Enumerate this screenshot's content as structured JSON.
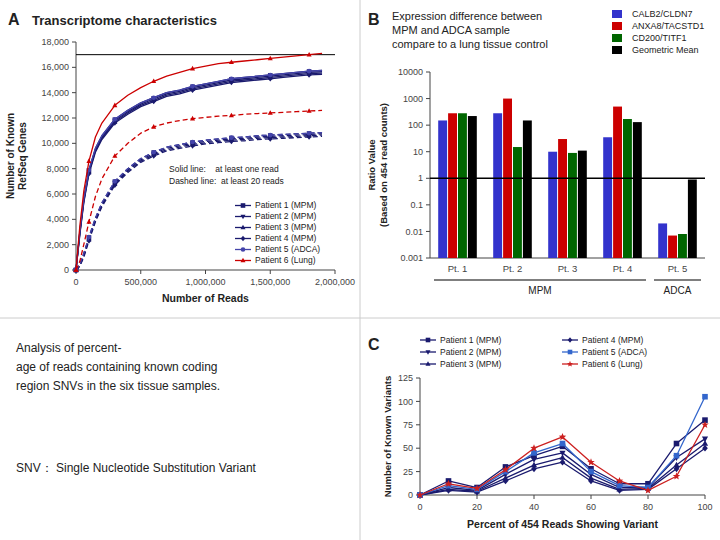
{
  "chart_data": [
    {
      "type": "line",
      "title": "Transcriptome characteristics",
      "xlabel": "Number of Reads",
      "ylabel": "Number of Known\nRefSeq Genes",
      "annotations": [
        "A",
        "Solid line:    at least one read\nDashed line:  at least 20 reads"
      ],
      "x": [
        0,
        30000,
        60000,
        100000,
        150000,
        200000,
        300000,
        400000,
        500000,
        600000,
        700000,
        800000,
        900000,
        1000000,
        1100000,
        1200000,
        1300000,
        1400000,
        1500000,
        1600000,
        1700000,
        1800000,
        1900000
      ],
      "xlim": [
        0,
        2000000
      ],
      "xticks": [
        0,
        {
          "value": 500000,
          "label": "500,000"
        },
        {
          "value": 1000000,
          "label": "1,000,000"
        },
        {
          "value": 1500000,
          "label": "1,500,000"
        },
        {
          "value": 2000000,
          "label": "2,000,000"
        }
      ],
      "ylim": [
        0,
        18000
      ],
      "yticks": [
        0,
        {
          "value": 2000,
          "label": "2,000"
        },
        {
          "value": 4000,
          "label": "4,000"
        },
        {
          "value": 6000,
          "label": "6,000"
        },
        {
          "value": 8000,
          "label": "8,000"
        },
        {
          "value": 10000,
          "label": "10,000"
        },
        {
          "value": 12000,
          "label": "12,000"
        },
        {
          "value": 14000,
          "label": "14,000"
        },
        {
          "value": 16000,
          "label": "16,000"
        },
        {
          "value": 18000,
          "label": "18,000"
        }
      ],
      "reference_line": 17000,
      "grid": false,
      "legend": "lower right",
      "series": [
        {
          "name": "Patient 1 (MPM)",
          "color": "#1a1a6e",
          "marker": "square",
          "line_style": "solid",
          "values": [
            0,
            3000,
            5500,
            7800,
            9500,
            10500,
            11800,
            12500,
            13100,
            13500,
            13900,
            14100,
            14400,
            14600,
            14800,
            15000,
            15100,
            15200,
            15300,
            15400,
            15500,
            15600,
            15650
          ]
        },
        {
          "color": "#1a1a6e",
          "marker": "square",
          "line_style": "dashed",
          "values": [
            0,
            400,
            1200,
            2500,
            4000,
            5200,
            6900,
            7900,
            8700,
            9200,
            9600,
            9800,
            10000,
            10150,
            10250,
            10350,
            10400,
            10500,
            10550,
            10600,
            10650,
            10700,
            10750
          ]
        },
        {
          "name": "Patient 2 (MPM)",
          "color": "#1a1a6e",
          "marker": "triangle-down",
          "line_style": "solid",
          "values": [
            0,
            3100,
            5600,
            7900,
            9600,
            10600,
            11900,
            12600,
            13200,
            13600,
            14000,
            14200,
            14500,
            14700,
            14900,
            15100,
            15200,
            15300,
            15400,
            15500,
            15600,
            15700,
            15750
          ]
        },
        {
          "color": "#1a1a6e",
          "marker": "triangle-down",
          "line_style": "dashed",
          "values": [
            0,
            450,
            1300,
            2600,
            4100,
            5300,
            7000,
            8000,
            8800,
            9300,
            9700,
            9900,
            10100,
            10250,
            10350,
            10450,
            10500,
            10600,
            10650,
            10700,
            10750,
            10800,
            10850
          ]
        },
        {
          "name": "Patient 3 (MPM)",
          "color": "#1a1a6e",
          "marker": "triangle-up",
          "line_style": "solid",
          "values": [
            0,
            2900,
            5400,
            7700,
            9400,
            10400,
            11700,
            12400,
            13000,
            13400,
            13800,
            14000,
            14300,
            14500,
            14700,
            14900,
            15000,
            15100,
            15200,
            15300,
            15400,
            15500,
            15550
          ]
        },
        {
          "color": "#1a1a6e",
          "marker": "triangle-up",
          "line_style": "dashed",
          "values": [
            0,
            350,
            1100,
            2400,
            3900,
            5100,
            6800,
            7800,
            8600,
            9100,
            9500,
            9700,
            9900,
            10050,
            10150,
            10250,
            10300,
            10400,
            10450,
            10500,
            10550,
            10600,
            10650
          ]
        },
        {
          "name": "Patient 4 (MPM)",
          "color": "#1a1a6e",
          "marker": "diamond",
          "line_style": "solid",
          "values": [
            0,
            2800,
            5300,
            7600,
            9300,
            10300,
            11600,
            12300,
            12900,
            13300,
            13700,
            13900,
            14200,
            14400,
            14600,
            14800,
            14900,
            15000,
            15100,
            15200,
            15300,
            15400,
            15450
          ]
        },
        {
          "color": "#1a1a6e",
          "marker": "diamond",
          "line_style": "dashed",
          "values": [
            0,
            300,
            1000,
            2300,
            3800,
            5000,
            6700,
            7700,
            8500,
            9000,
            9400,
            9600,
            9800,
            9950,
            10050,
            10150,
            10200,
            10300,
            10350,
            10400,
            10450,
            10500,
            10550
          ]
        },
        {
          "name": "Patient 5 (ADCA)",
          "color": "#4444aa",
          "marker": "circle",
          "line_style": "solid",
          "values": [
            0,
            3100,
            5600,
            7900,
            9600,
            10600,
            11900,
            12600,
            13200,
            13600,
            14000,
            14200,
            14500,
            14700,
            14900,
            15100,
            15200,
            15300,
            15400,
            15500,
            15600,
            15700,
            15750
          ]
        },
        {
          "color": "#4444aa",
          "marker": "circle",
          "line_style": "dashed",
          "values": [
            0,
            450,
            1300,
            2600,
            4100,
            5300,
            7000,
            8000,
            8800,
            9300,
            9700,
            9900,
            10100,
            10250,
            10350,
            10450,
            10500,
            10600,
            10650,
            10700,
            10750,
            10800,
            10850
          ]
        },
        {
          "name": "Patient 6 (Lung)",
          "color": "#cc0000",
          "marker": "triangle-up",
          "line_style": "solid",
          "values": [
            0,
            3500,
            6200,
            8600,
            10500,
            11600,
            13000,
            13800,
            14400,
            14900,
            15300,
            15600,
            15900,
            16100,
            16300,
            16400,
            16500,
            16600,
            16700,
            16800,
            16900,
            17000,
            17100
          ]
        },
        {
          "color": "#cc0000",
          "marker": "triangle-up",
          "line_style": "dashed",
          "values": [
            0,
            700,
            2000,
            3800,
            5800,
            7200,
            9000,
            10000,
            10800,
            11300,
            11600,
            11800,
            11950,
            12050,
            12150,
            12200,
            12300,
            12350,
            12400,
            12450,
            12500,
            12550,
            12600
          ]
        }
      ]
    },
    {
      "type": "bar",
      "title": "Expression difference between\nMPM and ADCA sample\ncompare to a lung tissue control",
      "ylabel": "Ratio Value\n(Based on 454 read counts)",
      "annotations": [
        "B"
      ],
      "categories": [
        "Pt. 1",
        "Pt. 2",
        "Pt. 3",
        "Pt. 4",
        "Pt. 5"
      ],
      "groups": [
        {
          "label": "MPM",
          "categories": [
            "Pt. 1",
            "Pt. 2",
            "Pt. 3",
            "Pt. 4"
          ]
        },
        {
          "label": "ADCA",
          "categories": [
            "Pt. 5"
          ]
        }
      ],
      "log": "y",
      "ylim": [
        0.001,
        10000
      ],
      "yticks": [
        0.001,
        0.01,
        0.1,
        1,
        10,
        100,
        1000,
        10000
      ],
      "reference_line": 1,
      "grid": false,
      "legend": "upper right",
      "series": [
        {
          "name": "CALB2/CLDN7",
          "color": "#3333cc",
          "values": [
            150,
            280,
            10,
            35,
            0.02
          ]
        },
        {
          "name": "ANXA8/TACSTD1",
          "color": "#cc0000",
          "values": [
            280,
            1000,
            30,
            500,
            0.007
          ]
        },
        {
          "name": "CD200/TITF1",
          "color": "#006600",
          "values": [
            280,
            15,
            9,
            170,
            0.008
          ]
        },
        {
          "name": "Geometric Mean",
          "color": "#000000",
          "values": [
            220,
            150,
            11,
            130,
            0.9
          ]
        }
      ]
    },
    {
      "type": "line",
      "xlabel": "Percent of 454 Reads Showing Variant",
      "ylabel": "Number of Known Variants",
      "annotations": [
        "C",
        "Analysis of percent-\nage of reads containing known coding\nregion SNVs in the six tissue samples.",
        "SNV：  Single Nucleotide Substitution Variant"
      ],
      "x": [
        0,
        10,
        20,
        30,
        40,
        50,
        60,
        70,
        80,
        90,
        100
      ],
      "xlim": [
        0,
        100
      ],
      "xticks": [
        0,
        20,
        40,
        60,
        80,
        100
      ],
      "ylim": [
        0,
        125
      ],
      "yticks": [
        0,
        25,
        50,
        75,
        100,
        125
      ],
      "grid": false,
      "legend": "upper left",
      "series": [
        {
          "name": "Patient 1 (MPM)",
          "color": "#1a1a6e",
          "marker": "square",
          "line_style": "solid",
          "values": [
            0,
            15,
            8,
            30,
            42,
            52,
            28,
            12,
            12,
            55,
            80
          ]
        },
        {
          "name": "Patient 2 (MPM)",
          "color": "#1a1a6e",
          "marker": "triangle-down",
          "line_style": "solid",
          "values": [
            0,
            8,
            5,
            22,
            38,
            45,
            22,
            8,
            8,
            40,
            60
          ]
        },
        {
          "name": "Patient 3 (MPM)",
          "color": "#1a1a6e",
          "marker": "triangle-up",
          "line_style": "solid",
          "values": [
            0,
            6,
            4,
            18,
            32,
            40,
            18,
            6,
            7,
            32,
            55
          ]
        },
        {
          "name": "Patient 4 (MPM)",
          "color": "#1a1a6e",
          "marker": "diamond",
          "line_style": "solid",
          "values": [
            0,
            5,
            3,
            15,
            28,
            35,
            15,
            5,
            6,
            28,
            50
          ]
        },
        {
          "name": "Patient 5 (ADCA)",
          "color": "#3366cc",
          "marker": "square",
          "line_style": "solid",
          "values": [
            0,
            10,
            6,
            25,
            45,
            55,
            25,
            10,
            8,
            42,
            105
          ]
        },
        {
          "name": "Patient 6 (Lung)",
          "color": "#cc2020",
          "marker": "star",
          "line_style": "solid",
          "values": [
            0,
            12,
            7,
            27,
            50,
            62,
            35,
            15,
            5,
            20,
            75
          ]
        }
      ]
    }
  ]
}
